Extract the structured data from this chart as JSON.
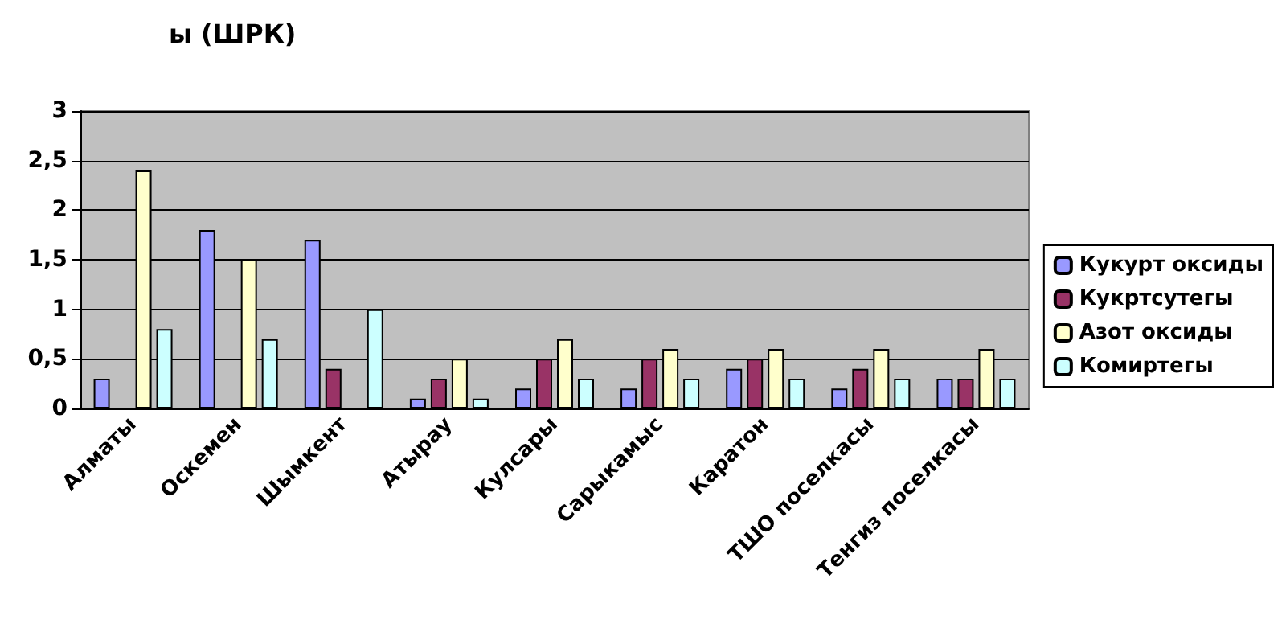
{
  "chart_data": {
    "type": "bar",
    "title": "ы (ШРК)",
    "categories": [
      "Алматы",
      "Оскемен",
      "Шымкент",
      "Атырау",
      "Кулсары",
      "Сарыкамыс",
      "Каратон",
      "ТШО поселкасы",
      "Тенгиз поселкасы"
    ],
    "series": [
      {
        "name": "Кукурт оксиды",
        "color": "#9999ff",
        "values": [
          0.3,
          1.8,
          1.7,
          0.1,
          0.2,
          0.2,
          0.4,
          0.2,
          0.3
        ]
      },
      {
        "name": "Кукртсутегы",
        "color": "#993366",
        "values": [
          null,
          null,
          0.4,
          0.3,
          0.5,
          0.5,
          0.5,
          0.4,
          0.3
        ]
      },
      {
        "name": "Азот оксиды",
        "color": "#ffffcc",
        "values": [
          2.4,
          1.5,
          null,
          0.5,
          0.7,
          0.6,
          0.6,
          0.6,
          0.6
        ]
      },
      {
        "name": "Комиртегы",
        "color": "#ccffff",
        "values": [
          0.8,
          0.7,
          1.0,
          0.1,
          0.3,
          0.3,
          0.3,
          0.3,
          0.3
        ]
      }
    ],
    "ylim": [
      0,
      3
    ],
    "yticks": [
      0,
      {
        "value": 0.5,
        "label": "0,5"
      },
      1,
      {
        "value": 1.5,
        "label": "1,5"
      },
      2,
      {
        "value": 2.5,
        "label": "2,5"
      },
      3
    ],
    "grid": "y",
    "legend": "right"
  }
}
